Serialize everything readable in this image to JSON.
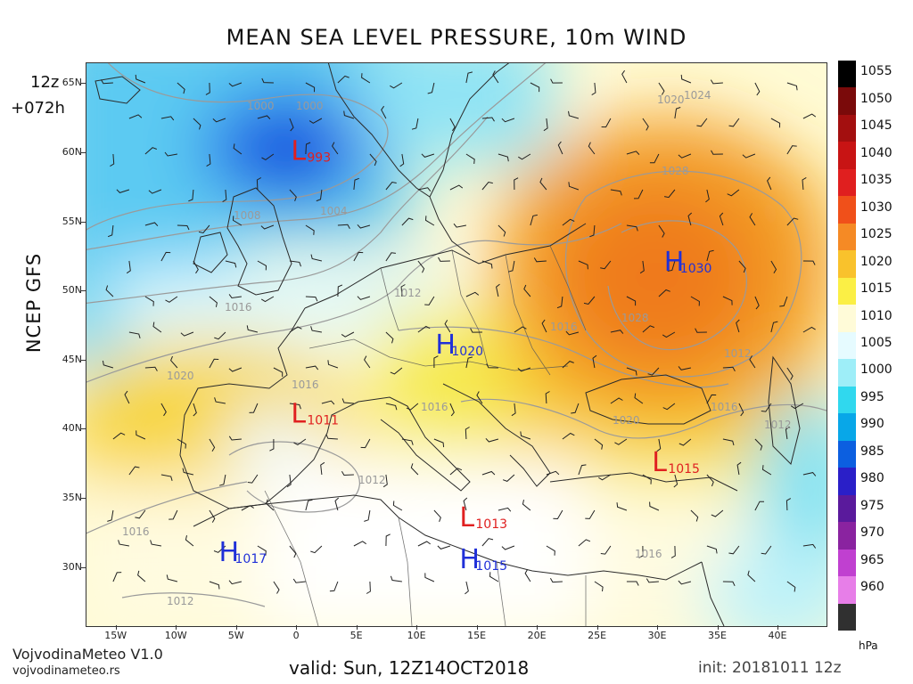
{
  "title": "MEAN SEA LEVEL PRESSURE, 10m WIND",
  "run": {
    "hour": "12z",
    "lead": "+072h"
  },
  "model": "NCEP GFS",
  "latitudes": [
    "65N",
    "60N",
    "55N",
    "50N",
    "45N",
    "40N",
    "35N",
    "30N"
  ],
  "longitudes": [
    "15W",
    "10W",
    "5W",
    "0",
    "5E",
    "10E",
    "15E",
    "20E",
    "25E",
    "30E",
    "35E",
    "40E"
  ],
  "colorbar": {
    "labels": [
      "1055",
      "1050",
      "1045",
      "1040",
      "1035",
      "1030",
      "1025",
      "1020",
      "1015",
      "1010",
      "1005",
      "1000",
      "995",
      "990",
      "985",
      "980",
      "975",
      "970",
      "965",
      "960"
    ],
    "unit": "hPa",
    "colors": [
      "#000000",
      "#7a0a0a",
      "#a30f0f",
      "#c81414",
      "#e01f1f",
      "#f0501a",
      "#f58a25",
      "#f9c22c",
      "#fbef45",
      "#fffbd8",
      "#e6fbff",
      "#9eeef8",
      "#30d8ee",
      "#08a7e8",
      "#0c5fe0",
      "#2a1fc8",
      "#5a1a9c",
      "#8a23a0",
      "#c040d0",
      "#e77ee8",
      "#303030"
    ]
  },
  "pressure_centers": [
    {
      "type": "L",
      "value": "993",
      "lat": 59.5,
      "lon": -0.5
    },
    {
      "type": "H",
      "value": "1030",
      "lat": 51.5,
      "lon": 30.5
    },
    {
      "type": "H",
      "value": "1020",
      "lat": 45.5,
      "lon": 11.5
    },
    {
      "type": "L",
      "value": "1011",
      "lat": 40.5,
      "lon": -0.5
    },
    {
      "type": "L",
      "value": "1015",
      "lat": 37.0,
      "lon": 29.5
    },
    {
      "type": "L",
      "value": "1013",
      "lat": 33.0,
      "lon": 13.5
    },
    {
      "type": "H",
      "value": "1017",
      "lat": 30.5,
      "lon": -6.5
    },
    {
      "type": "H",
      "value": "1015",
      "lat": 30.0,
      "lon": 13.5
    }
  ],
  "isobar_labels": [
    "1000",
    "1000",
    "1004",
    "1008",
    "1012",
    "1016",
    "1016",
    "1020",
    "1016",
    "1016",
    "1012",
    "1028",
    "1028",
    "1024",
    "1020",
    "1016",
    "1012",
    "1020",
    "1012",
    "1016",
    "1016",
    "1012"
  ],
  "footer": {
    "app": "VojvodinaMeteo V1.0",
    "url": "vojvodinameteo.rs",
    "valid": "valid: Sun, 12Z14OCT2018",
    "init": "init: 20181011 12z"
  },
  "colors": {
    "low_marker": "#e02020",
    "high_marker": "#2030d8",
    "isobar": "#9a9a9a"
  }
}
